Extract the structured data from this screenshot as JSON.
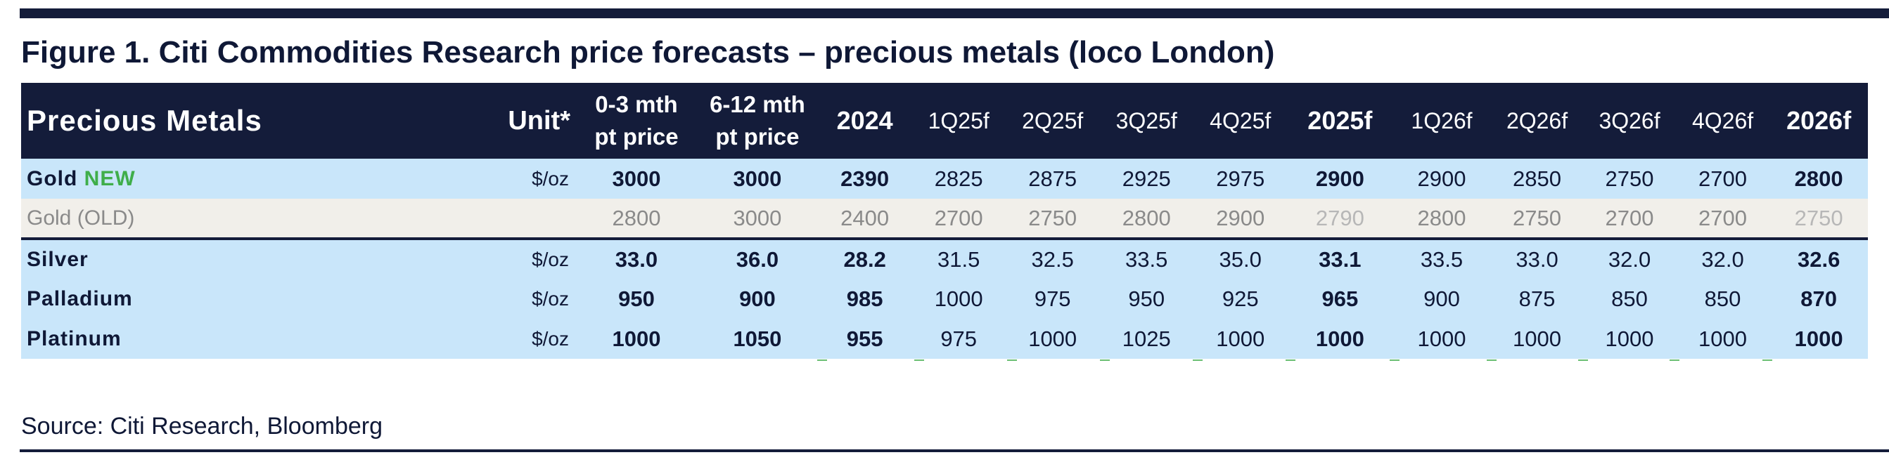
{
  "figure": {
    "title": "Figure 1. Citi Commodities Research price forecasts – precious metals (loco London)",
    "source": "Source: Citi Research, Bloomberg"
  },
  "table": {
    "headers": {
      "metal": "Precious Metals",
      "unit": "Unit*",
      "spot_0_3_line1": "0-3 mth",
      "spot_0_3_line2": "pt price",
      "spot_6_12_line1": "6-12 mth",
      "spot_6_12_line2": "pt price",
      "y2024": "2024",
      "q1_25": "1Q25f",
      "q2_25": "2Q25f",
      "q3_25": "3Q25f",
      "q4_25": "4Q25f",
      "y2025": "2025f",
      "q1_26": "1Q26f",
      "q2_26": "2Q26f",
      "q3_26": "3Q26f",
      "q4_26": "4Q26f",
      "y2026": "2026f"
    },
    "rows": [
      {
        "metal": "Gold",
        "badge": "NEW",
        "unit": "$/oz",
        "values": [
          "3000",
          "3000",
          "2390",
          "2825",
          "2875",
          "2925",
          "2975",
          "2900",
          "2900",
          "2850",
          "2750",
          "2700",
          "2800"
        ]
      },
      {
        "metal": "Gold (OLD)",
        "unit": "",
        "values": [
          "2800",
          "3000",
          "2400",
          "2700",
          "2750",
          "2800",
          "2900",
          "2790",
          "2800",
          "2750",
          "2700",
          "2700",
          "2750"
        ]
      },
      {
        "metal": "Silver",
        "unit": "$/oz",
        "values": [
          "33.0",
          "36.0",
          "28.2",
          "31.5",
          "32.5",
          "33.5",
          "35.0",
          "33.1",
          "33.5",
          "33.0",
          "32.0",
          "32.0",
          "32.6"
        ]
      },
      {
        "metal": "Palladium",
        "unit": "$/oz",
        "values": [
          "950",
          "900",
          "985",
          "1000",
          "975",
          "950",
          "925",
          "965",
          "900",
          "875",
          "850",
          "850",
          "870"
        ]
      },
      {
        "metal": "Platinum",
        "unit": "$/oz",
        "values": [
          "1000",
          "1050",
          "955",
          "975",
          "1000",
          "1025",
          "1000",
          "1000",
          "1000",
          "1000",
          "1000",
          "1000",
          "1000"
        ]
      }
    ]
  },
  "colors": {
    "header_bg": "#141c3a",
    "row_blue": "#c9e6fa",
    "row_old": "#f1efea",
    "new_badge": "#3fae4a"
  }
}
